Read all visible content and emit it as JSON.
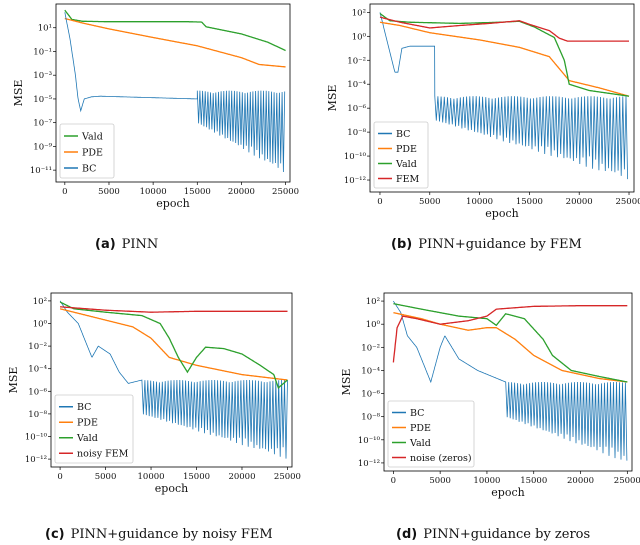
{
  "chart_data": [
    {
      "type": "line",
      "label": "(a)",
      "caption": "PINN",
      "xlabel": "epoch",
      "ylabel": "MSE",
      "yscale": "log",
      "xlim": [
        -1000,
        25500
      ],
      "ylim": [
        1e-12,
        1000
      ],
      "xticks": [
        0,
        5000,
        10000,
        15000,
        20000,
        25000
      ],
      "yticks": [
        {
          "v": 10,
          "t": "10¹"
        },
        {
          "v": 0.1,
          "t": "10⁻¹"
        },
        {
          "v": 0.001,
          "t": "10⁻³"
        },
        {
          "v": 1e-05,
          "t": "10⁻⁵"
        },
        {
          "v": 1e-07,
          "t": "10⁻⁷"
        },
        {
          "v": 1e-09,
          "t": "10⁻⁹"
        },
        {
          "v": 1e-11,
          "t": "10⁻¹¹"
        }
      ],
      "legend": {
        "placement": "lower-left"
      },
      "series": [
        {
          "name": "Vald",
          "color": "#2ca02c",
          "values": [
            [
              0,
              300
            ],
            [
              800,
              50
            ],
            [
              2000,
              35
            ],
            [
              5000,
              32
            ],
            [
              10000,
              32
            ],
            [
              14000,
              32
            ],
            [
              15500,
              30
            ],
            [
              16000,
              12
            ],
            [
              20000,
              3
            ],
            [
              23000,
              0.6
            ],
            [
              25000,
              0.12
            ]
          ]
        },
        {
          "name": "PDE",
          "color": "#ff7f0e",
          "values": [
            [
              0,
              60
            ],
            [
              2000,
              25
            ],
            [
              5000,
              8
            ],
            [
              10000,
              1.5
            ],
            [
              15000,
              0.3
            ],
            [
              20000,
              0.03
            ],
            [
              22000,
              0.008
            ],
            [
              25000,
              0.005
            ]
          ]
        },
        {
          "name": "BC",
          "color": "#1f77b4",
          "oscillate": {
            "start": 15000,
            "end": 25000,
            "top": 5e-05,
            "bottomStart": 1e-07,
            "bottomEnd": 5e-12,
            "step": 150
          },
          "values": [
            [
              0,
              200
            ],
            [
              600,
              1
            ],
            [
              1200,
              0.001
            ],
            [
              1500,
              1e-05
            ],
            [
              1800,
              1e-06
            ],
            [
              2200,
              1e-05
            ],
            [
              3000,
              1.5e-05
            ],
            [
              4000,
              1.7e-05
            ],
            [
              15000,
              1e-05
            ]
          ]
        }
      ]
    },
    {
      "type": "line",
      "label": "(b)",
      "caption": "PINN+guidance by FEM",
      "xlabel": "epoch",
      "ylabel": "MSE",
      "yscale": "log",
      "xlim": [
        -1000,
        25500
      ],
      "ylim": [
        1e-13,
        500
      ],
      "xticks": [
        0,
        5000,
        10000,
        15000,
        20000,
        25000
      ],
      "yticks": [
        {
          "v": 100,
          "t": "10²"
        },
        {
          "v": 1,
          "t": "10⁰"
        },
        {
          "v": 0.01,
          "t": "10⁻²"
        },
        {
          "v": 0.0001,
          "t": "10⁻⁴"
        },
        {
          "v": 1e-06,
          "t": "10⁻⁶"
        },
        {
          "v": 1e-08,
          "t": "10⁻⁸"
        },
        {
          "v": 1e-10,
          "t": "10⁻¹⁰"
        },
        {
          "v": 1e-12,
          "t": "10⁻¹²"
        }
      ],
      "legend": {
        "placement": "lower-left"
      },
      "series": [
        {
          "name": "BC",
          "color": "#1f77b4",
          "oscillate": {
            "start": 5500,
            "end": 25000,
            "top": 1e-05,
            "bottomStart": 1e-07,
            "bottomEnd": 1e-12,
            "step": 160
          },
          "values": [
            [
              0,
              100
            ],
            [
              600,
              1
            ],
            [
              1200,
              0.01
            ],
            [
              1500,
              0.001
            ],
            [
              1800,
              0.001
            ],
            [
              2200,
              0.1
            ],
            [
              3000,
              0.15
            ],
            [
              5500,
              0.15
            ]
          ]
        },
        {
          "name": "PDE",
          "color": "#ff7f0e",
          "values": [
            [
              0,
              15
            ],
            [
              2000,
              8
            ],
            [
              5000,
              2
            ],
            [
              10000,
              0.5
            ],
            [
              14000,
              0.12
            ],
            [
              17000,
              0.02
            ],
            [
              19000,
              0.0002
            ],
            [
              22000,
              5e-05
            ],
            [
              25000,
              1e-05
            ]
          ]
        },
        {
          "name": "Vald",
          "color": "#2ca02c",
          "values": [
            [
              0,
              80
            ],
            [
              1000,
              20
            ],
            [
              3000,
              15
            ],
            [
              8000,
              12
            ],
            [
              12000,
              15
            ],
            [
              14000,
              18
            ],
            [
              15500,
              6
            ],
            [
              17500,
              0.8
            ],
            [
              18500,
              0.01
            ],
            [
              19000,
              0.0001
            ],
            [
              21000,
              3e-05
            ],
            [
              25000,
              1e-05
            ]
          ]
        },
        {
          "name": "FEM",
          "color": "#d62728",
          "values": [
            [
              0,
              40
            ],
            [
              2000,
              15
            ],
            [
              5000,
              5
            ],
            [
              8000,
              8
            ],
            [
              11000,
              12
            ],
            [
              14000,
              20
            ],
            [
              15000,
              10
            ],
            [
              17000,
              3
            ],
            [
              18000,
              0.7
            ],
            [
              18800,
              0.4
            ],
            [
              25000,
              0.4
            ]
          ]
        }
      ]
    },
    {
      "type": "line",
      "label": "(c)",
      "caption": "PINN+guidance by noisy FEM",
      "xlabel": "epoch",
      "ylabel": "MSE",
      "yscale": "log",
      "xlim": [
        -1000,
        25500
      ],
      "ylim": [
        2e-13,
        500
      ],
      "xticks": [
        0,
        5000,
        10000,
        15000,
        20000,
        25000
      ],
      "yticks": [
        {
          "v": 100,
          "t": "10²"
        },
        {
          "v": 1,
          "t": "10⁰"
        },
        {
          "v": 0.01,
          "t": "10⁻²"
        },
        {
          "v": 0.0001,
          "t": "10⁻⁴"
        },
        {
          "v": 1e-06,
          "t": "10⁻⁶"
        },
        {
          "v": 1e-08,
          "t": "10⁻⁸"
        },
        {
          "v": 1e-10,
          "t": "10⁻¹⁰"
        },
        {
          "v": 1e-12,
          "t": "10⁻¹²"
        }
      ],
      "legend": {
        "placement": "lower-left"
      },
      "series": [
        {
          "name": "BC",
          "color": "#1f77b4",
          "oscillate": {
            "start": 9000,
            "end": 25000,
            "top": 1e-05,
            "bottomStart": 1e-08,
            "bottomEnd": 1e-12,
            "step": 160
          },
          "values": [
            [
              0,
              100
            ],
            [
              800,
              10
            ],
            [
              2000,
              1
            ],
            [
              3000,
              0.01
            ],
            [
              3500,
              0.001
            ],
            [
              4200,
              0.01
            ],
            [
              5500,
              0.002
            ],
            [
              6500,
              5e-05
            ],
            [
              7500,
              5e-06
            ],
            [
              9000,
              1e-05
            ]
          ]
        },
        {
          "name": "PDE",
          "color": "#ff7f0e",
          "values": [
            [
              0,
              20
            ],
            [
              2000,
              8
            ],
            [
              5000,
              2
            ],
            [
              8000,
              0.5
            ],
            [
              10000,
              0.05
            ],
            [
              12000,
              0.001
            ],
            [
              15000,
              0.0002
            ],
            [
              20000,
              3e-05
            ],
            [
              25000,
              1e-05
            ]
          ]
        },
        {
          "name": "Vald",
          "color": "#2ca02c",
          "values": [
            [
              0,
              80
            ],
            [
              1500,
              20
            ],
            [
              5000,
              10
            ],
            [
              9000,
              5
            ],
            [
              11000,
              1
            ],
            [
              12000,
              0.05
            ],
            [
              13000,
              0.001
            ],
            [
              14000,
              5e-05
            ],
            [
              15000,
              0.001
            ],
            [
              16000,
              0.008
            ],
            [
              18000,
              0.006
            ],
            [
              20000,
              0.002
            ],
            [
              22000,
              0.0002
            ],
            [
              23500,
              3e-05
            ],
            [
              24000,
              2e-06
            ],
            [
              25000,
              1e-05
            ]
          ]
        },
        {
          "name": "noisy FEM",
          "color": "#d62728",
          "values": [
            [
              0,
              30
            ],
            [
              5000,
              15
            ],
            [
              10000,
              10
            ],
            [
              15000,
              12
            ],
            [
              20000,
              12
            ],
            [
              25000,
              12
            ]
          ]
        }
      ]
    },
    {
      "type": "line",
      "label": "(d)",
      "caption": "PINN+guidance by zeros",
      "xlabel": "epoch",
      "ylabel": "MSE",
      "yscale": "log",
      "xlim": [
        -1000,
        25500
      ],
      "ylim": [
        2e-13,
        500
      ],
      "xticks": [
        0,
        5000,
        10000,
        15000,
        20000,
        25000
      ],
      "yticks": [
        {
          "v": 100,
          "t": "10²"
        },
        {
          "v": 1,
          "t": "10⁰"
        },
        {
          "v": 0.01,
          "t": "10⁻²"
        },
        {
          "v": 0.0001,
          "t": "10⁻⁴"
        },
        {
          "v": 1e-06,
          "t": "10⁻⁶"
        },
        {
          "v": 1e-08,
          "t": "10⁻⁸"
        },
        {
          "v": 1e-10,
          "t": "10⁻¹⁰"
        },
        {
          "v": 1e-12,
          "t": "10⁻¹²"
        }
      ],
      "legend": {
        "placement": "lower-left"
      },
      "series": [
        {
          "name": "BC",
          "color": "#1f77b4",
          "oscillate": {
            "start": 12000,
            "end": 25000,
            "top": 1e-05,
            "bottomStart": 1e-08,
            "bottomEnd": 1e-12,
            "step": 160
          },
          "values": [
            [
              0,
              100
            ],
            [
              800,
              10
            ],
            [
              1500,
              0.1
            ],
            [
              2500,
              0.01
            ],
            [
              3500,
              0.0001
            ],
            [
              4000,
              1e-05
            ],
            [
              5000,
              0.01
            ],
            [
              5500,
              0.1
            ],
            [
              7000,
              0.001
            ],
            [
              9000,
              0.0001
            ],
            [
              12000,
              1e-05
            ]
          ]
        },
        {
          "name": "PDE",
          "color": "#ff7f0e",
          "values": [
            [
              0,
              10
            ],
            [
              3000,
              3
            ],
            [
              5000,
              1
            ],
            [
              8000,
              0.3
            ],
            [
              10000,
              0.5
            ],
            [
              11000,
              0.5
            ],
            [
              13000,
              0.05
            ],
            [
              15000,
              0.002
            ],
            [
              18000,
              0.0001
            ],
            [
              22000,
              2e-05
            ],
            [
              25000,
              1e-05
            ]
          ]
        },
        {
          "name": "Vald",
          "color": "#2ca02c",
          "values": [
            [
              0,
              60
            ],
            [
              3000,
              20
            ],
            [
              5000,
              10
            ],
            [
              7000,
              5
            ],
            [
              10000,
              3
            ],
            [
              11000,
              0.8
            ],
            [
              12000,
              8
            ],
            [
              14000,
              3
            ],
            [
              16000,
              0.05
            ],
            [
              17000,
              0.002
            ],
            [
              19000,
              0.0001
            ],
            [
              22000,
              3e-05
            ],
            [
              25000,
              1e-05
            ]
          ]
        },
        {
          "name": "noise (zeros)",
          "color": "#d62728",
          "values": [
            [
              0,
              0.0005
            ],
            [
              400,
              0.5
            ],
            [
              1000,
              5
            ],
            [
              2500,
              3
            ],
            [
              5000,
              1
            ],
            [
              8000,
              2
            ],
            [
              10000,
              5
            ],
            [
              11000,
              20
            ],
            [
              15000,
              35
            ],
            [
              20000,
              40
            ],
            [
              25000,
              40
            ]
          ]
        }
      ]
    }
  ]
}
